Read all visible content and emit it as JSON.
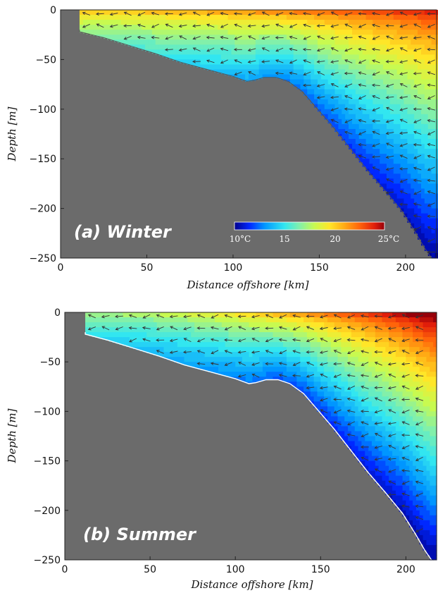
{
  "chart_data": [
    {
      "type": "heatmap",
      "panel_label": "(a) Winter",
      "xlabel": "Distance offshore [km]",
      "ylabel": "Depth [m]",
      "xlim": [
        0,
        218
      ],
      "ylim": [
        -250,
        0
      ],
      "xticks": [
        0,
        50,
        100,
        150,
        200
      ],
      "yticks": [
        0,
        -50,
        -100,
        -150,
        -200,
        -250
      ],
      "xtick_labels": [
        "0",
        "50",
        "100",
        "150",
        "200"
      ],
      "ytick_labels": [
        "0",
        "−50",
        "−100",
        "−150",
        "−200",
        "−250"
      ],
      "colorbar": {
        "min": 10,
        "max": 25,
        "ticks": [
          10,
          15,
          20,
          25
        ],
        "tick_labels": [
          "10°C",
          "15",
          "20",
          "25°C"
        ]
      },
      "bathymetry_km_m": [
        [
          11,
          -20
        ],
        [
          11,
          -22
        ],
        [
          25,
          -28
        ],
        [
          40,
          -36
        ],
        [
          55,
          -44
        ],
        [
          70,
          -53
        ],
        [
          85,
          -60
        ],
        [
          100,
          -67
        ],
        [
          108,
          -72
        ],
        [
          112,
          -71
        ],
        [
          118,
          -68
        ],
        [
          125,
          -68
        ],
        [
          132,
          -72
        ],
        [
          140,
          -82
        ],
        [
          148,
          -98
        ],
        [
          158,
          -118
        ],
        [
          168,
          -140
        ],
        [
          178,
          -162
        ],
        [
          188,
          -182
        ],
        [
          198,
          -203
        ],
        [
          206,
          -225
        ],
        [
          211,
          -240
        ],
        [
          215,
          -250
        ]
      ],
      "temperature_fields": {
        "surface_nearshore_C": 20,
        "surface_offshore_C": 24,
        "bottom_nearshore_C": 17,
        "bottom_offshore_C": 10
      }
    },
    {
      "type": "heatmap",
      "panel_label": "(b) Summer",
      "xlabel": "Distance offshore [km]",
      "ylabel": "Depth [m]",
      "xlim": [
        0,
        218
      ],
      "ylim": [
        -250,
        0
      ],
      "xticks": [
        0,
        50,
        100,
        150,
        200
      ],
      "yticks": [
        0,
        -50,
        -100,
        -150,
        -200,
        -250
      ],
      "xtick_labels": [
        "0",
        "50",
        "100",
        "150",
        "200"
      ],
      "ytick_labels": [
        "0",
        "−50",
        "−100",
        "−150",
        "−200",
        "−250"
      ],
      "bathymetry_km_m": [
        [
          12,
          -20
        ],
        [
          12,
          -22
        ],
        [
          25,
          -28
        ],
        [
          40,
          -36
        ],
        [
          55,
          -44
        ],
        [
          70,
          -53
        ],
        [
          85,
          -60
        ],
        [
          100,
          -67
        ],
        [
          108,
          -72
        ],
        [
          112,
          -71
        ],
        [
          118,
          -68
        ],
        [
          125,
          -68
        ],
        [
          132,
          -72
        ],
        [
          140,
          -82
        ],
        [
          148,
          -98
        ],
        [
          158,
          -118
        ],
        [
          168,
          -140
        ],
        [
          178,
          -162
        ],
        [
          188,
          -182
        ],
        [
          198,
          -203
        ],
        [
          206,
          -225
        ],
        [
          211,
          -240
        ],
        [
          215,
          -250
        ]
      ],
      "temperature_fields": {
        "surface_nearshore_C": 17,
        "surface_offshore_C": 26,
        "bottom_nearshore_C": 15,
        "bottom_offshore_C": 10
      }
    }
  ]
}
